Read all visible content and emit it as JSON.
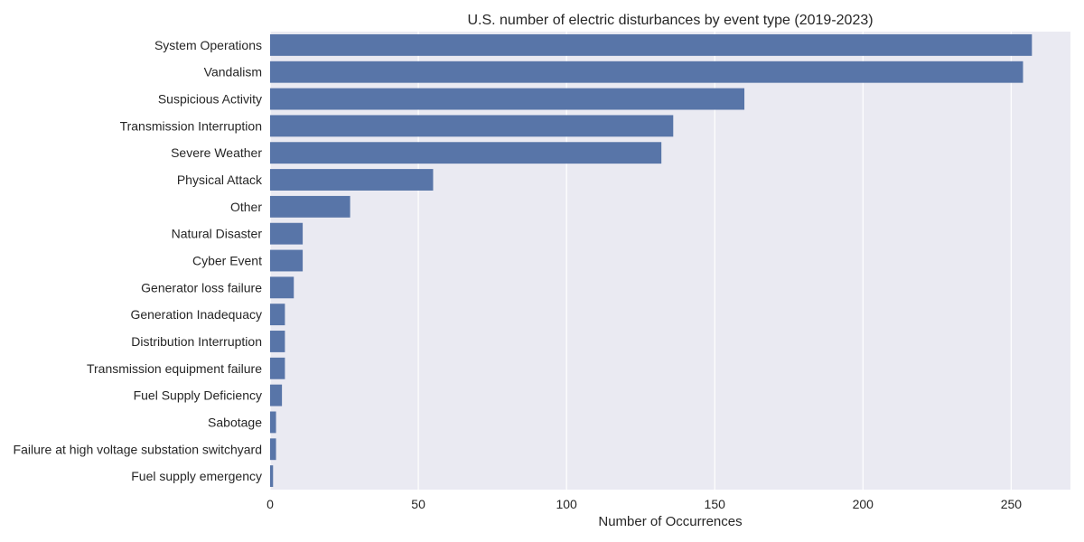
{
  "chart_data": {
    "type": "bar",
    "orientation": "horizontal",
    "title": "U.S. number of electric disturbances by event type (2019-2023)",
    "xlabel": "Number of Occurrences",
    "ylabel": "",
    "xlim": [
      0,
      270
    ],
    "xticks": [
      0,
      50,
      100,
      150,
      200,
      250
    ],
    "grid": true,
    "categories": [
      "System Operations",
      "Vandalism",
      "Suspicious Activity",
      "Transmission Interruption",
      "Severe Weather",
      "Physical Attack",
      "Other",
      "Natural Disaster",
      "Cyber Event",
      "Generator loss failure",
      "Generation Inadequacy",
      "Distribution Interruption",
      "Transmission equipment failure",
      "Fuel Supply Deficiency",
      "Sabotage",
      "Failure at high voltage substation switchyard",
      "Fuel supply emergency"
    ],
    "values": [
      257,
      254,
      160,
      136,
      132,
      55,
      27,
      11,
      11,
      8,
      5,
      5,
      5,
      4,
      2,
      2,
      1
    ],
    "colors": {
      "bar": "#5875a8",
      "plot_background": "#eaeaf2",
      "grid": "#ffffff",
      "text": "#262626"
    }
  }
}
